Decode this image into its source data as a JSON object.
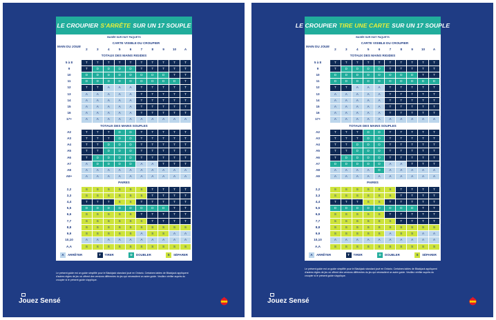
{
  "colors": {
    "navy": "#1f3c84",
    "teal": "#21ad9c",
    "tirer": "#0f2a55",
    "arreter": "#bcd6ec",
    "doubler": "#21ad9c",
    "separer": "#cde33a"
  },
  "headers": {
    "main_du_joueur": "MAIN DU JOUEUR",
    "carte_visible": "CARTE VISIBLE DU CROUPIER",
    "dealer_cards": [
      "2",
      "3",
      "4",
      "5",
      "6",
      "7",
      "8",
      "9",
      "10",
      "A"
    ]
  },
  "legend": [
    {
      "code": "A",
      "label": "ARRÊTER",
      "kind": "A"
    },
    {
      "code": "T",
      "label": "TIRER",
      "kind": "T"
    },
    {
      "code": "D",
      "label": "DOUBLER",
      "kind": "D"
    },
    {
      "code": "S",
      "label": "SÉPARER",
      "kind": "S"
    }
  ],
  "brand": "Jouez Sensé",
  "olg_logo": "OLG",
  "pages": [
    {
      "title_pre": "LE CROUPIER",
      "title_hl": "S'ARRÊTE",
      "title_post": "SUR UN 17 SOUPLE",
      "subtitle": "BASÉE SUR HUIT PAQUETS",
      "note": "Le présent guide est un guide simplifié pour le Blackjack standard joué en Ontario. Certaines tables de Blackjack appliquent d'autres règles de jeu où offrent des versions différentes du jeu qui nécessitent un autre guide. Veuillez vérifier auprès du croupier si le présent guide s'applique.",
      "sections": [
        {
          "title": "TOTAUX DES MAINS RIGIDES",
          "rows": [
            {
              "label": "5 à 8",
              "cells": "TTTTTTTTTT"
            },
            {
              "label": "9",
              "cells": "TDDDDTTTTT"
            },
            {
              "label": "10",
              "cells": "DDDDDDDDTT"
            },
            {
              "label": "11",
              "cells": "DDDDDDDDDT"
            },
            {
              "label": "12",
              "cells": "TTAAATTTTT"
            },
            {
              "label": "13",
              "cells": "AAAAATTTTT"
            },
            {
              "label": "14",
              "cells": "AAAAATTTTT"
            },
            {
              "label": "15",
              "cells": "AAAAATTTTT"
            },
            {
              "label": "16",
              "cells": "AAAAATTTTT"
            },
            {
              "label": "17+",
              "cells": "AAAAAAAAAA"
            }
          ]
        },
        {
          "title": "TOTAUX DES MAINS SOUPLES",
          "rows": [
            {
              "label": "A2",
              "cells": "TTTDDTTTTT"
            },
            {
              "label": "A3",
              "cells": "TTTDDTTTTT"
            },
            {
              "label": "A4",
              "cells": "TTDDDTTTTT"
            },
            {
              "label": "A5",
              "cells": "TTDDDTTTTT"
            },
            {
              "label": "A6",
              "cells": "TDDDDTTTTT"
            },
            {
              "label": "A7",
              "cells": "ADDDDAATTT"
            },
            {
              "label": "A8",
              "cells": "AAAAAAAAAA"
            },
            {
              "label": "A9+",
              "cells": "AAAAAAAAAA"
            }
          ]
        },
        {
          "title": "PAIRES",
          "rows": [
            {
              "label": "2,2",
              "cells": "SSSSSSTTTT"
            },
            {
              "label": "3,3",
              "cells": "SSSSSSTTTT"
            },
            {
              "label": "4,4",
              "cells": "TTTSSTTTTT"
            },
            {
              "label": "5,5",
              "cells": "DDDDDDDDTT"
            },
            {
              "label": "6,6",
              "cells": "SSSSSTTTTT"
            },
            {
              "label": "7,7",
              "cells": "SSSSSSTTTT"
            },
            {
              "label": "8,8",
              "cells": "SSSSSSSSSS"
            },
            {
              "label": "9,9",
              "cells": "SSSSSASSAA"
            },
            {
              "label": "10,10",
              "cells": "AAAAAAAAAA"
            },
            {
              "label": "A,A",
              "cells": "SSSSSSSSSS"
            }
          ]
        }
      ]
    },
    {
      "title_pre": "LE CROUPIER",
      "title_hl": "TIRE UNE CARTE",
      "title_post": "SUR UN 17 SOUPLE",
      "subtitle": "BASÉE SUR HUIT PAQUETS",
      "note": "Le présent guide est un guide simplifié pour le Blackjack standard joué en Ontario. Certaines tables de Blackjack appliquent d'autres règles de jeu où offrent des versions différentes du jeu qui nécessitent un autre guide. Veuillez vérifier auprès du croupier si le présent guide s'applique.",
      "sections": [
        {
          "title": "TOTAUX DES MAINS RIGIDES",
          "rows": [
            {
              "label": "5 à 8",
              "cells": "TTTTTTTTTT"
            },
            {
              "label": "9",
              "cells": "TDDDDTTTTT"
            },
            {
              "label": "10",
              "cells": "DDDDDDDDTT"
            },
            {
              "label": "11",
              "cells": "DDDDDDDDDD"
            },
            {
              "label": "12",
              "cells": "TTAAATTTTT"
            },
            {
              "label": "13",
              "cells": "AAAAATTTTT"
            },
            {
              "label": "14",
              "cells": "AAAAATTTTT"
            },
            {
              "label": "15",
              "cells": "AAAAATTTTT"
            },
            {
              "label": "16",
              "cells": "AAAAATTTTT"
            },
            {
              "label": "17+",
              "cells": "AAAAAAAAAA"
            }
          ]
        },
        {
          "title": "TOTAUX DES MAINS SOUPLES",
          "rows": [
            {
              "label": "A2",
              "cells": "TTTDDTTTTT"
            },
            {
              "label": "A3",
              "cells": "TTTDDTTTTT"
            },
            {
              "label": "A4",
              "cells": "TTDDDTTTTT"
            },
            {
              "label": "A5",
              "cells": "TTDDDTTTTT"
            },
            {
              "label": "A6",
              "cells": "TDDDDTTTTT"
            },
            {
              "label": "A7",
              "cells": "DDDDDAATTT"
            },
            {
              "label": "A8",
              "cells": "AAAADAAAAA"
            },
            {
              "label": "A9",
              "cells": "AAAAAAAAAA"
            }
          ]
        },
        {
          "title": "PAIRES",
          "rows": [
            {
              "label": "2,2",
              "cells": "SSSSSSTTTT"
            },
            {
              "label": "3,3",
              "cells": "SSSSSSTTTT"
            },
            {
              "label": "4,4",
              "cells": "TTTSSTTTTT"
            },
            {
              "label": "5,5",
              "cells": "DDDDDDDDTT"
            },
            {
              "label": "6,6",
              "cells": "SSSSSTTTTT"
            },
            {
              "label": "7,7",
              "cells": "SSSSSSTTTT"
            },
            {
              "label": "8,8",
              "cells": "SSSSSSSSSS"
            },
            {
              "label": "9,9",
              "cells": "SSSSSASSAA"
            },
            {
              "label": "10,10",
              "cells": "AAAAAAAAAA"
            },
            {
              "label": "A,A",
              "cells": "SSSSSSSSSS"
            }
          ]
        }
      ]
    }
  ]
}
